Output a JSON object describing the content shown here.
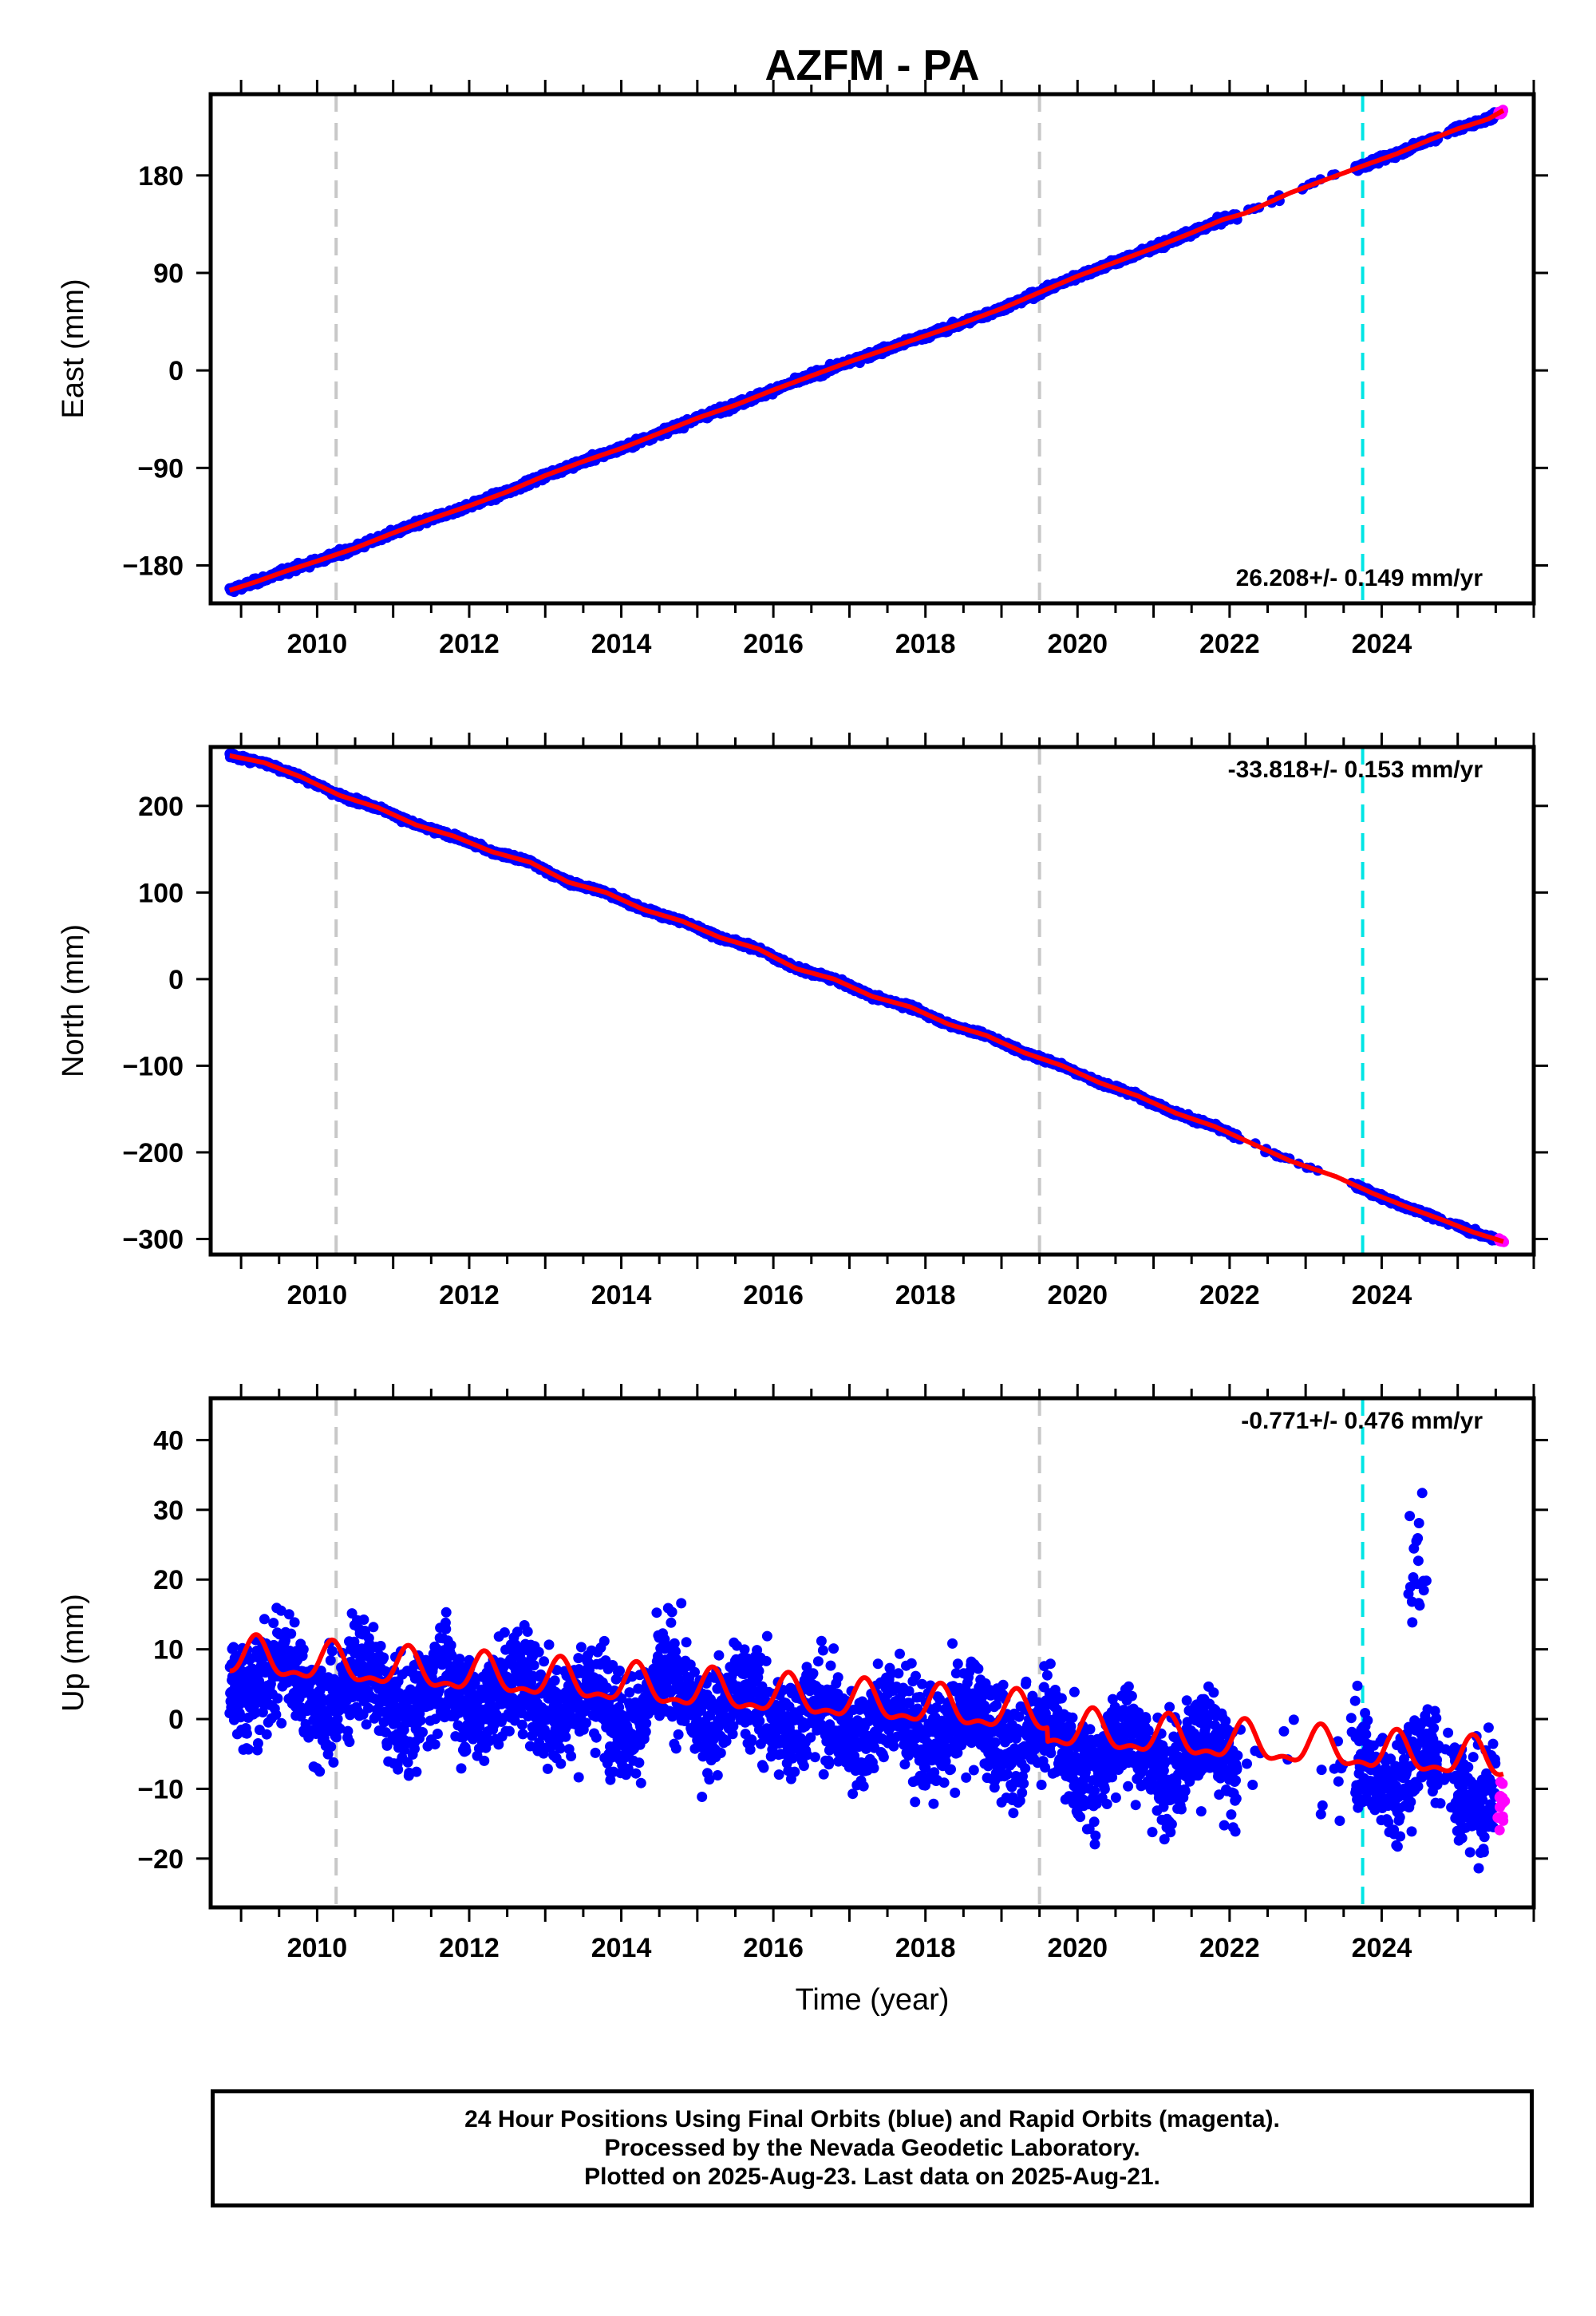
{
  "chart_data": [
    {
      "type": "scatter",
      "title": "AZFM - PA",
      "ylabel": "East (mm)",
      "xlabel": "",
      "xlim": [
        2008.6,
        2026.0
      ],
      "ylim": [
        -215,
        255
      ],
      "xticks": [
        2010,
        2012,
        2014,
        2016,
        2018,
        2020,
        2022,
        2024
      ],
      "yticks": [
        -180,
        -90,
        0,
        90,
        180
      ],
      "rate_text": "26.208+/- 0.149 mm/yr",
      "rate_position": "bottom-right",
      "grid": false,
      "event_lines": [
        {
          "x": 2010.25,
          "color": "#c8c8c8"
        },
        {
          "x": 2019.5,
          "color": "#c8c8c8"
        },
        {
          "x": 2023.75,
          "color": "#00e5e5"
        }
      ],
      "trend": {
        "slope_mm_per_yr": 26.208,
        "ref_year": 2016.2,
        "ref_value": 0,
        "seasonal_amplitude": 1.5
      },
      "points": {
        "final_color": "#0000ff",
        "rapid_color": "#ff00ff",
        "fit_color": "#ff0000",
        "x": [
          2008.85,
          2009.2,
          2009.6,
          2010.0,
          2010.5,
          2011.0,
          2011.5,
          2012.0,
          2012.5,
          2013.0,
          2013.5,
          2014.0,
          2014.5,
          2015.0,
          2015.5,
          2016.0,
          2016.5,
          2017.0,
          2017.5,
          2018.0,
          2018.5,
          2019.0,
          2019.5,
          2020.0,
          2020.5,
          2021.0,
          2021.5,
          2021.9,
          2022.2,
          2022.8,
          2023.8,
          2024.2,
          2024.6,
          2025.0,
          2025.4,
          2025.6
        ],
        "y": [
          -203,
          -195,
          -185,
          -176,
          -164,
          -150,
          -137,
          -125,
          -112,
          -97,
          -84,
          -72,
          -58,
          -44,
          -32,
          -18,
          -5,
          8,
          20,
          32,
          44,
          57,
          72,
          87,
          100,
          113,
          127,
          139,
          145,
          164,
          190,
          200,
          212,
          223,
          232,
          240
        ]
      }
    },
    {
      "type": "scatter",
      "title": "",
      "ylabel": "North (mm)",
      "xlabel": "",
      "xlim": [
        2008.6,
        2026.0
      ],
      "ylim": [
        -318,
        268
      ],
      "xticks": [
        2010,
        2012,
        2014,
        2016,
        2018,
        2020,
        2022,
        2024
      ],
      "yticks": [
        -300,
        -200,
        -100,
        0,
        100,
        200
      ],
      "rate_text": "-33.818+/- 0.153 mm/yr",
      "rate_position": "top-right",
      "grid": false,
      "event_lines": [
        {
          "x": 2010.25,
          "color": "#c8c8c8"
        },
        {
          "x": 2019.5,
          "color": "#c8c8c8"
        },
        {
          "x": 2023.75,
          "color": "#00e5e5"
        }
      ],
      "trend": {
        "slope_mm_per_yr": -33.818,
        "ref_year": 2016.3,
        "ref_value": 5,
        "seasonal_amplitude": 3
      },
      "points": {
        "final_color": "#0000ff",
        "rapid_color": "#ff00ff",
        "fit_color": "#ff0000",
        "x": [
          2008.85,
          2009.3,
          2009.8,
          2010.3,
          2010.8,
          2011.3,
          2011.8,
          2012.3,
          2012.8,
          2013.3,
          2013.8,
          2014.3,
          2014.8,
          2015.3,
          2015.8,
          2016.3,
          2016.8,
          2017.3,
          2017.8,
          2018.3,
          2018.8,
          2019.3,
          2019.8,
          2020.3,
          2020.8,
          2021.3,
          2021.8,
          2022.3,
          2022.8,
          2023.4,
          2023.9,
          2024.3,
          2024.8,
          2025.2,
          2025.6
        ],
        "y": [
          258,
          250,
          233,
          212,
          198,
          178,
          165,
          147,
          135,
          112,
          100,
          80,
          67,
          48,
          35,
          12,
          0,
          -20,
          -32,
          -52,
          -65,
          -85,
          -100,
          -120,
          -135,
          -155,
          -170,
          -190,
          -210,
          -228,
          -248,
          -262,
          -278,
          -292,
          -303
        ]
      }
    },
    {
      "type": "scatter",
      "title": "",
      "ylabel": "Up (mm)",
      "xlabel": "Time (year)",
      "xlim": [
        2008.6,
        2026.0
      ],
      "ylim": [
        -27,
        46
      ],
      "xticks": [
        2010,
        2012,
        2014,
        2016,
        2018,
        2020,
        2022,
        2024
      ],
      "yticks": [
        -20,
        -10,
        0,
        10,
        20,
        30,
        40
      ],
      "rate_text": "-0.771+/- 0.476 mm/yr",
      "rate_position": "top-right",
      "grid": false,
      "event_lines": [
        {
          "x": 2010.25,
          "color": "#c8c8c8"
        },
        {
          "x": 2019.5,
          "color": "#c8c8c8"
        },
        {
          "x": 2023.75,
          "color": "#00e5e5"
        }
      ],
      "trend": {
        "slope_mm_per_yr": -0.771,
        "ref_year": 2016.3,
        "ref_value": 0,
        "seasonal_amplitude": 2.8
      },
      "points": {
        "final_color": "#0000ff",
        "rapid_color": "#ff00ff",
        "fit_color": "#ff0000",
        "x": [
          2008.85,
          2009.5,
          2010.0,
          2010.6,
          2011.2,
          2011.8,
          2012.4,
          2013.0,
          2013.6,
          2014.2,
          2014.8,
          2015.4,
          2016.0,
          2016.6,
          2017.2,
          2017.8,
          2018.4,
          2019.0,
          2019.6,
          2020.2,
          2020.8,
          2021.4,
          2021.9,
          2022.6,
          2023.1,
          2023.8,
          2024.3,
          2024.9,
          2025.4
        ],
        "y": [
          7,
          6,
          3,
          5,
          2,
          4,
          3,
          4,
          1,
          2,
          4,
          1,
          2,
          -1,
          0,
          -2,
          -1,
          -2,
          -3,
          -6,
          -4,
          -6,
          -5,
          -5,
          -9,
          -7,
          -8,
          -6,
          -12
        ]
      }
    }
  ],
  "footer": {
    "line1": "24 Hour Positions Using Final Orbits (blue) and Rapid Orbits (magenta).",
    "line2": "Processed by the Nevada Geodetic Laboratory.",
    "line3": "Plotted on 2025-Aug-23. Last data on 2025-Aug-21."
  }
}
